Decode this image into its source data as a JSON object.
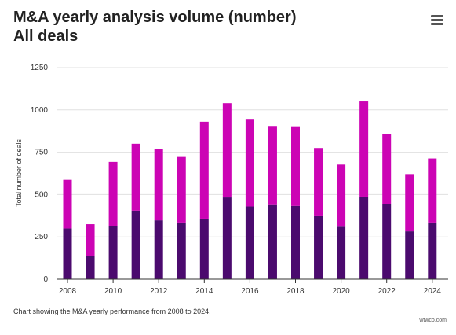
{
  "header": {
    "title_line1": "M&A yearly analysis volume (number)",
    "title_line2": "All deals",
    "menu_icon": "hamburger-menu-icon"
  },
  "caption": "Chart showing the M&A yearly performance from 2008 to 2024.",
  "credit": "wtwco.com",
  "colors": {
    "series_bottom": "#4b0a6e",
    "series_top": "#cc04b4",
    "grid": "#e0e0e0",
    "axis": "#333333"
  },
  "chart_data": {
    "type": "bar",
    "stacked": true,
    "categories": [
      "2008",
      "2009",
      "2010",
      "2011",
      "2012",
      "2013",
      "2014",
      "2015",
      "2016",
      "2017",
      "2018",
      "2019",
      "2020",
      "2021",
      "2022",
      "2023",
      "2024"
    ],
    "series": [
      {
        "values": [
          300,
          135,
          315,
          405,
          348,
          335,
          358,
          483,
          430,
          438,
          433,
          372,
          310,
          488,
          443,
          283,
          335
        ]
      },
      {
        "values": [
          287,
          190,
          378,
          395,
          422,
          387,
          572,
          557,
          517,
          467,
          470,
          403,
          367,
          562,
          413,
          338,
          378
        ]
      }
    ],
    "x_tick_labels": [
      "2008",
      "2010",
      "2012",
      "2014",
      "2016",
      "2018",
      "2020",
      "2022",
      "2024"
    ],
    "y_ticks": [
      0,
      250,
      500,
      750,
      1000,
      1250
    ],
    "ylim": [
      0,
      1250
    ],
    "xlabel": "",
    "ylabel": "Total number of deals",
    "grid": true,
    "legend": "none"
  }
}
